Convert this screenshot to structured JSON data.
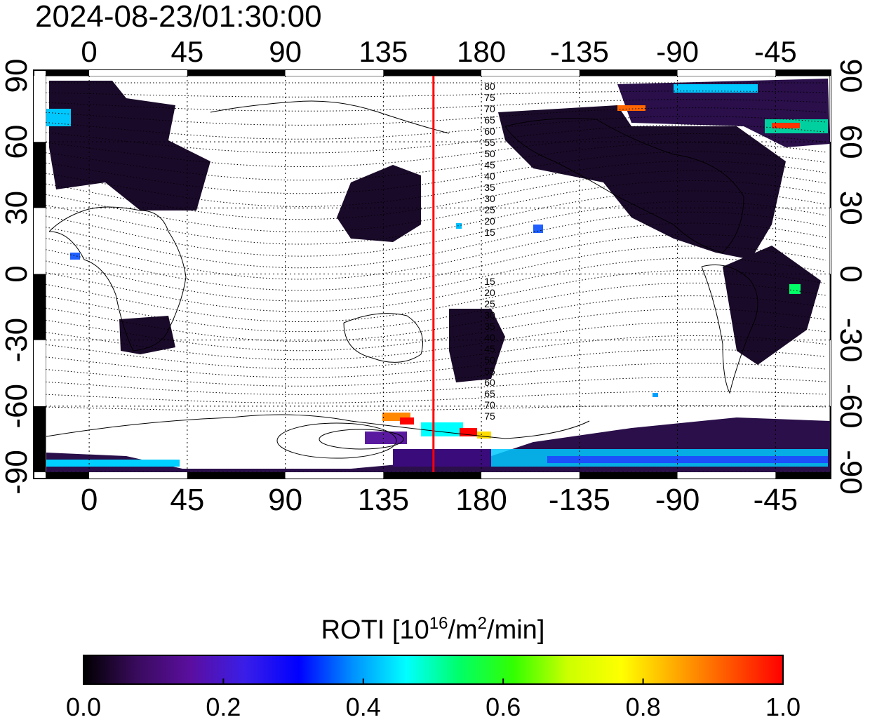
{
  "title": "2024-08-23/01:30:00",
  "map": {
    "lon_ticks": [
      "0",
      "45",
      "90",
      "135",
      "180",
      "-135",
      "-90",
      "-45"
    ],
    "lat_ticks": [
      "90",
      "60",
      "30",
      "0",
      "-30",
      "-60",
      "-90"
    ],
    "lon_range": [
      -20,
      340
    ],
    "lat_range": [
      -90,
      90
    ],
    "meridian_marker_lon": 158,
    "meridian_marker_color": "#ff0000",
    "contour_labels_north": [
      "80",
      "75",
      "70",
      "65",
      "60",
      "55",
      "50",
      "45",
      "40",
      "35",
      "30",
      "25",
      "20",
      "15"
    ],
    "contour_labels_south": [
      "15",
      "20",
      "25",
      "30",
      "35",
      "40",
      "45",
      "50",
      "55",
      "60",
      "65",
      "70",
      "75"
    ]
  },
  "colorbar": {
    "label_prefix": "ROTI  [10",
    "label_sup1": "16",
    "label_mid": "/m",
    "label_sup2": "2",
    "label_suffix": "/min]",
    "ticks": [
      "0.0",
      "0.2",
      "0.4",
      "0.6",
      "0.8",
      "1.0"
    ],
    "range": [
      0.0,
      1.0
    ],
    "colors": [
      "#000000",
      "#3a0b5e",
      "#5b0ea0",
      "#3a1ee8",
      "#0000ff",
      "#0090ff",
      "#00ffff",
      "#00ff66",
      "#33ff00",
      "#ccff00",
      "#ffff00",
      "#ffaa00",
      "#ff5500",
      "#ff0000"
    ]
  }
}
